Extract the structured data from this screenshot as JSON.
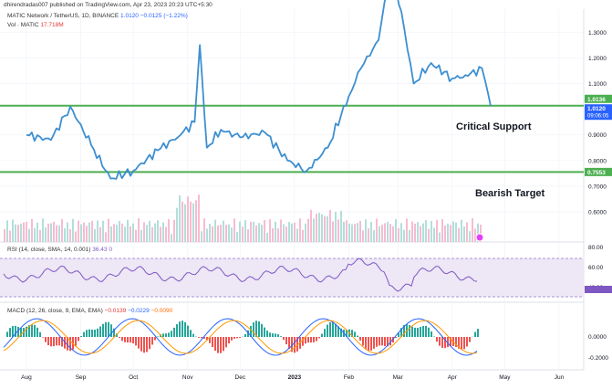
{
  "header": {
    "published_by": "dhirendradas007 published on TradingView.com, Apr 23, 2023 20:23 UTC+5:30",
    "symbol": "MATIC Network / TetherUS, 1D, BINANCE",
    "price": "1.0120",
    "change": "−0.0125 (−1.22%)",
    "volume_label": "Vol · MATIC",
    "volume_value": "17.718M"
  },
  "annotations": {
    "critical_support": "Critical Support",
    "bearish_target": "Bearish Target"
  },
  "colors": {
    "price_line": "#3d8fd1",
    "support_line": "#4caf50",
    "vol_up": "#26a69a",
    "vol_down": "#ef5350",
    "rsi_line": "#7e57c2",
    "rsi_band": "#ede7f6",
    "macd_line": "#2962ff",
    "signal_line": "#ff9800"
  },
  "price_axis": {
    "ticks": [
      "1.3000",
      "1.2000",
      "1.1000",
      "0.9000",
      "0.8000",
      "0.7000",
      "0.6000"
    ],
    "current_label": "1.0120",
    "countdown_label": "09:06:05",
    "support_label": "1.0136",
    "target_label": "0.7553"
  },
  "rsi_axis": {
    "ticks": [
      "80.00",
      "60.00",
      "40.00"
    ]
  },
  "macd_axis": {
    "ticks": [
      "0.0000",
      "-0.2000"
    ]
  },
  "indicators": {
    "rsi_label": "RSI (14, close, SMA, 14, 0.001)",
    "rsi_value": "36.43",
    "rsi_ma_value": "0",
    "macd_label": "MACD (12, 26, close, 9, EMA, EMA)",
    "macd_hist": "−0.0139",
    "macd_line": "−0.0229",
    "macd_signal": "−0.0090"
  },
  "time_axis": {
    "labels": [
      "Aug",
      "Sep",
      "Oct",
      "Nov",
      "Dec",
      "2023",
      "Feb",
      "Mar",
      "Apr",
      "May",
      "Jun"
    ]
  },
  "chart_data": {
    "type": "line",
    "title": "",
    "x": [
      "2022-08-01",
      "2022-08-15",
      "2022-08-26",
      "2022-09-07",
      "2022-09-18",
      "2022-10-01",
      "2022-10-15",
      "2022-10-28",
      "2022-11-05",
      "2022-11-08",
      "2022-11-12",
      "2022-11-20",
      "2022-12-01",
      "2022-12-15",
      "2022-12-28",
      "2023-01-08",
      "2023-01-20",
      "2023-02-01",
      "2023-02-08",
      "2023-02-18",
      "2023-02-25",
      "2023-03-03",
      "2023-03-10",
      "2023-03-20",
      "2023-04-01",
      "2023-04-10",
      "2023-04-18",
      "2023-04-23"
    ],
    "series": [
      {
        "values": [
          0.9,
          0.88,
          1.01,
          0.86,
          0.73,
          0.76,
          0.84,
          0.9,
          0.95,
          1.25,
          0.85,
          0.92,
          0.89,
          0.91,
          0.8,
          0.76,
          0.85,
          1.05,
          1.16,
          1.27,
          1.55,
          1.38,
          1.1,
          1.18,
          1.12,
          1.13,
          1.16,
          1.012
        ]
      }
    ],
    "horizontal_levels": [
      {
        "label": "Critical Support",
        "value": 1.0136
      },
      {
        "label": "Bearish Target",
        "value": 0.7553
      }
    ],
    "ylim": [
      0.6,
      1.39
    ],
    "grid": true,
    "legend": "none"
  }
}
